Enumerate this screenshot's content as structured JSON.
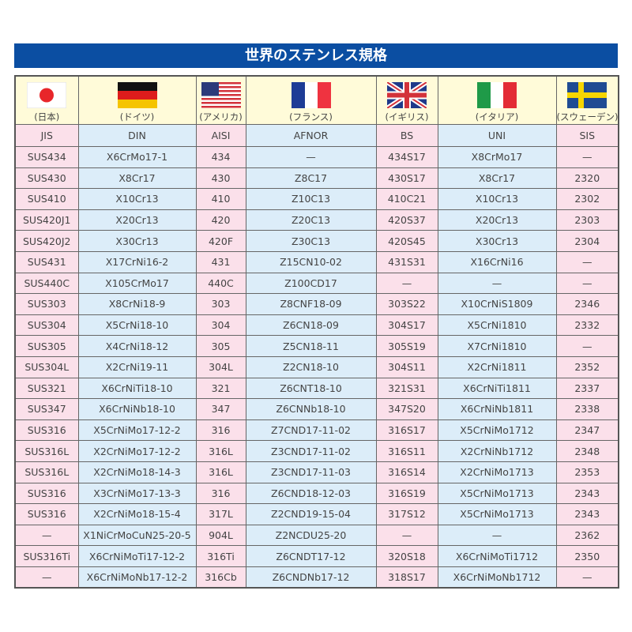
{
  "title": "世界のステンレス規格",
  "countries": [
    {
      "name": "(日本)",
      "flag": "japan-flag-icon"
    },
    {
      "name": "(ドイツ)",
      "flag": "germany-flag-icon"
    },
    {
      "name": "(アメリカ)",
      "flag": "usa-flag-icon"
    },
    {
      "name": "(フランス)",
      "flag": "france-flag-icon"
    },
    {
      "name": "(イギリス)",
      "flag": "uk-flag-icon"
    },
    {
      "name": "(イタリア)",
      "flag": "italy-flag-icon"
    },
    {
      "name": "(スウェーデン)",
      "flag": "sweden-flag-icon"
    }
  ],
  "headers": [
    "JIS",
    "DIN",
    "AISI",
    "AFNOR",
    "BS",
    "UNI",
    "SIS"
  ],
  "rows": [
    [
      "SUS434",
      "X6CrMo17-1",
      "434",
      "—",
      "434S17",
      "X8CrMo17",
      "—"
    ],
    [
      "SUS430",
      "X8Cr17",
      "430",
      "Z8C17",
      "430S17",
      "X8Cr17",
      "2320"
    ],
    [
      "SUS410",
      "X10Cr13",
      "410",
      "Z10C13",
      "410C21",
      "X10Cr13",
      "2302"
    ],
    [
      "SUS420J1",
      "X20Cr13",
      "420",
      "Z20C13",
      "420S37",
      "X20Cr13",
      "2303"
    ],
    [
      "SUS420J2",
      "X30Cr13",
      "420F",
      "Z30C13",
      "420S45",
      "X30Cr13",
      "2304"
    ],
    [
      "SUS431",
      "X17CrNi16-2",
      "431",
      "Z15CN10-02",
      "431S31",
      "X16CrNi16",
      "—"
    ],
    [
      "SUS440C",
      "X105CrMo17",
      "440C",
      "Z100CD17",
      "—",
      "—",
      "—"
    ],
    [
      "SUS303",
      "X8CrNi18-9",
      "303",
      "Z8CNF18-09",
      "303S22",
      "X10CrNiS1809",
      "2346"
    ],
    [
      "SUS304",
      "X5CrNi18-10",
      "304",
      "Z6CN18-09",
      "304S17",
      "X5CrNi1810",
      "2332"
    ],
    [
      "SUS305",
      "X4CrNi18-12",
      "305",
      "Z5CN18-11",
      "305S19",
      "X7CrNi1810",
      "—"
    ],
    [
      "SUS304L",
      "X2CrNi19-11",
      "304L",
      "Z2CN18-10",
      "304S11",
      "X2CrNi1811",
      "2352"
    ],
    [
      "SUS321",
      "X6CrNiTi18-10",
      "321",
      "Z6CNT18-10",
      "321S31",
      "X6CrNiTi1811",
      "2337"
    ],
    [
      "SUS347",
      "X6CrNiNb18-10",
      "347",
      "Z6CNNb18-10",
      "347S20",
      "X6CrNiNb1811",
      "2338"
    ],
    [
      "SUS316",
      "X5CrNiMo17-12-2",
      "316",
      "Z7CND17-11-02",
      "316S17",
      "X5CrNiMo1712",
      "2347"
    ],
    [
      "SUS316L",
      "X2CrNiMo17-12-2",
      "316L",
      "Z3CND17-11-02",
      "316S11",
      "X2CrNiNb1712",
      "2348"
    ],
    [
      "SUS316L",
      "X2CrNiMo18-14-3",
      "316L",
      "Z3CND17-11-03",
      "316S14",
      "X2CrNiMo1713",
      "2353"
    ],
    [
      "SUS316",
      "X3CrNiMo17-13-3",
      "316",
      "Z6CND18-12-03",
      "316S19",
      "X5CrNiMo1713",
      "2343"
    ],
    [
      "SUS316",
      "X2CrNiMo18-15-4",
      "317L",
      "Z2CND19-15-04",
      "317S12",
      "X5CrNiMo1713",
      "2343"
    ],
    [
      "—",
      "X1NiCrMoCuN25-20-5",
      "904L",
      "Z2NCDU25-20",
      "—",
      "—",
      "2362"
    ],
    [
      "SUS316Ti",
      "X6CrNiMoTi17-12-2",
      "316Ti",
      "Z6CNDT17-12",
      "320S18",
      "X6CrNiMoTi1712",
      "2350"
    ],
    [
      "—",
      "X6CrNiMoNb17-12-2",
      "316Cb",
      "Z6CNDNb17-12",
      "318S17",
      "X6CrNiMoNb1712",
      "—"
    ]
  ],
  "colors": {
    "title_bar": "#0b4ea2",
    "pink": "#fbe0ea",
    "blue": "#dcedf9",
    "yellow": "#fffbd9"
  }
}
